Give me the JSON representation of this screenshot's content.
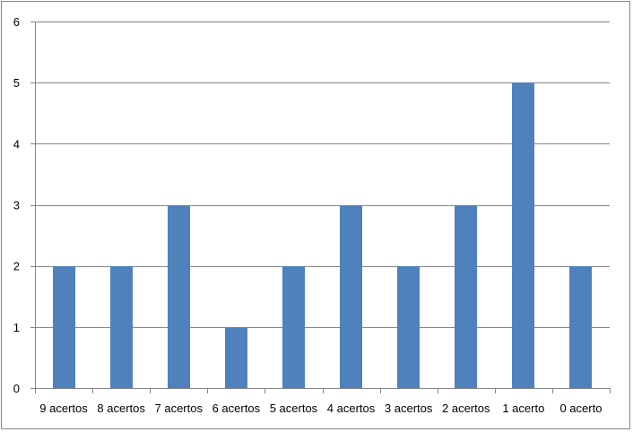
{
  "chart_data": {
    "type": "bar",
    "categories": [
      "9 acertos",
      "8 acertos",
      "7 acertos",
      "6 acertos",
      "5 acertos",
      "4 acertos",
      "3 acertos",
      "2 acertos",
      "1 acerto",
      "0 acerto"
    ],
    "values": [
      2,
      2,
      3,
      1,
      2,
      3,
      2,
      3,
      5,
      2
    ],
    "title": "",
    "xlabel": "",
    "ylabel": "",
    "ylim": [
      0,
      6
    ],
    "yticks": [
      "0",
      "1",
      "2",
      "3",
      "4",
      "5",
      "6"
    ],
    "grid": true,
    "legend": "none",
    "bar_color": "#4F81BD",
    "grid_color": "#868686"
  }
}
